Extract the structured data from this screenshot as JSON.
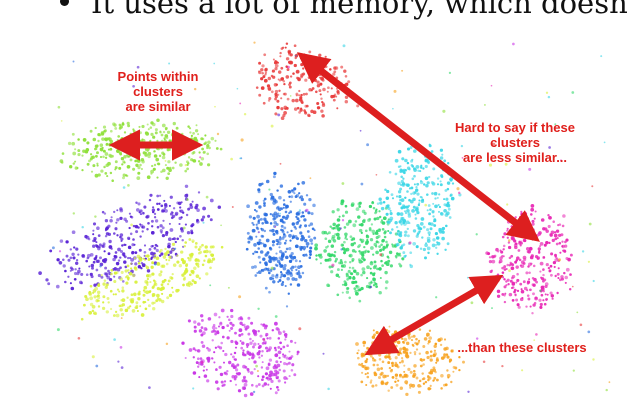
{
  "slide": {
    "bullet_text": "It uses a lot of memory, which doesn"
  },
  "annotations": {
    "within_line1": "Points within",
    "within_line2": "clusters",
    "within_line3": "are similar",
    "hard_line1": "Hard to say if these",
    "hard_line2": "clusters",
    "hard_line3": "are less similar...",
    "than_line1": "...than these clusters"
  },
  "colors": {
    "annotation": "#e0201c",
    "arrow": "#dd1f1f"
  },
  "clusters": [
    {
      "name": "red-cluster",
      "color": "#e83a3a"
    },
    {
      "name": "light-green-cluster",
      "color": "#8fe03a"
    },
    {
      "name": "purple-cluster",
      "color": "#5a24d6"
    },
    {
      "name": "yellow-green-cluster",
      "color": "#d8f03a"
    },
    {
      "name": "blue-cluster",
      "color": "#2a6ee0"
    },
    {
      "name": "green-cluster",
      "color": "#34d86a"
    },
    {
      "name": "cyan-cluster",
      "color": "#3ad6e6"
    },
    {
      "name": "magenta-cluster",
      "color": "#e826b4"
    },
    {
      "name": "violet-cluster",
      "color": "#c936e6"
    },
    {
      "name": "orange-cluster",
      "color": "#f7a21e"
    }
  ]
}
